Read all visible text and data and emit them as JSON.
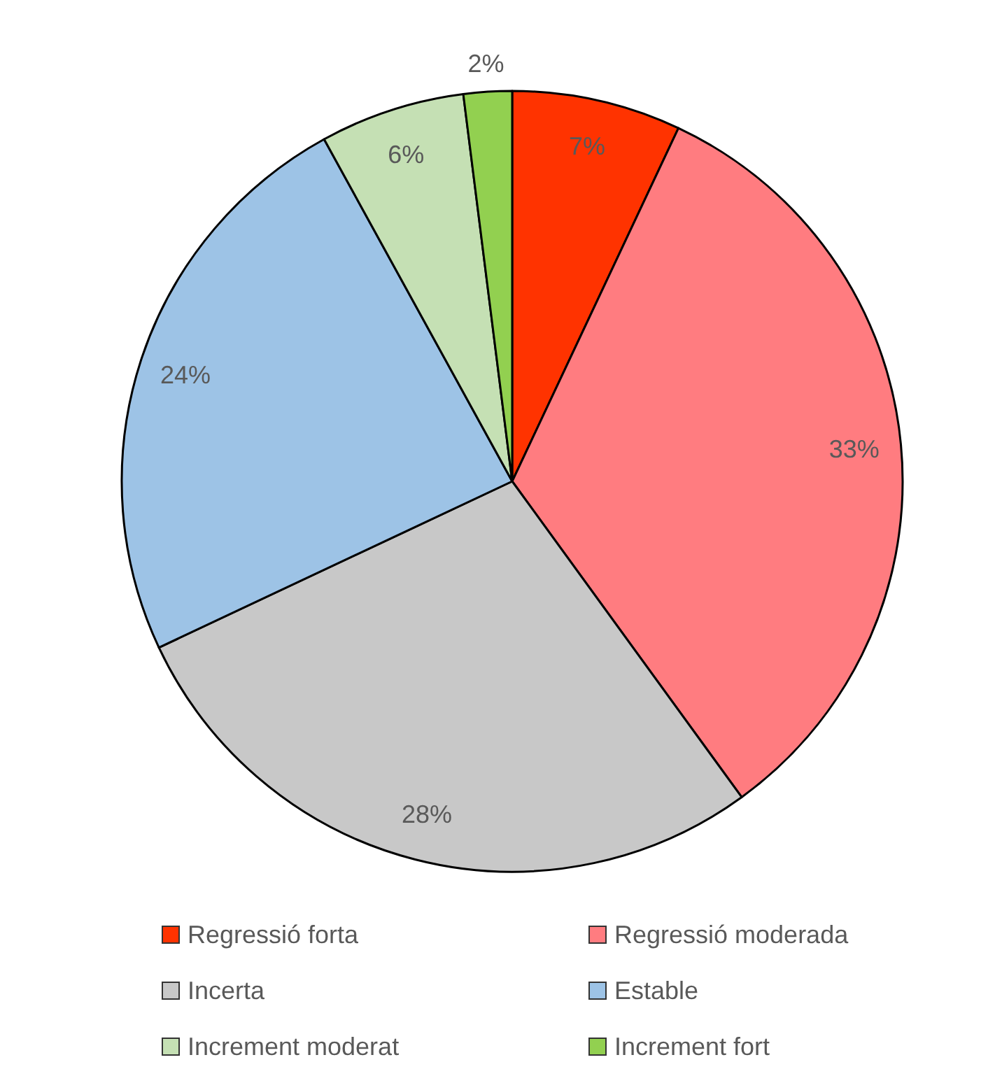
{
  "chart_data": {
    "type": "pie",
    "categories": [
      "Regressió forta",
      "Regressió moderada",
      "Incerta",
      "Estable",
      "Increment moderat",
      "Increment fort"
    ],
    "values": [
      7,
      33,
      28,
      24,
      6,
      2
    ],
    "colors": [
      "#ff3300",
      "#ff7c80",
      "#c8c8c8",
      "#9dc3e6",
      "#c5e0b4",
      "#92d050"
    ],
    "value_labels": [
      "7%",
      "33%",
      "28%",
      "24%",
      "6%",
      "2%"
    ],
    "legend": "bottom"
  }
}
